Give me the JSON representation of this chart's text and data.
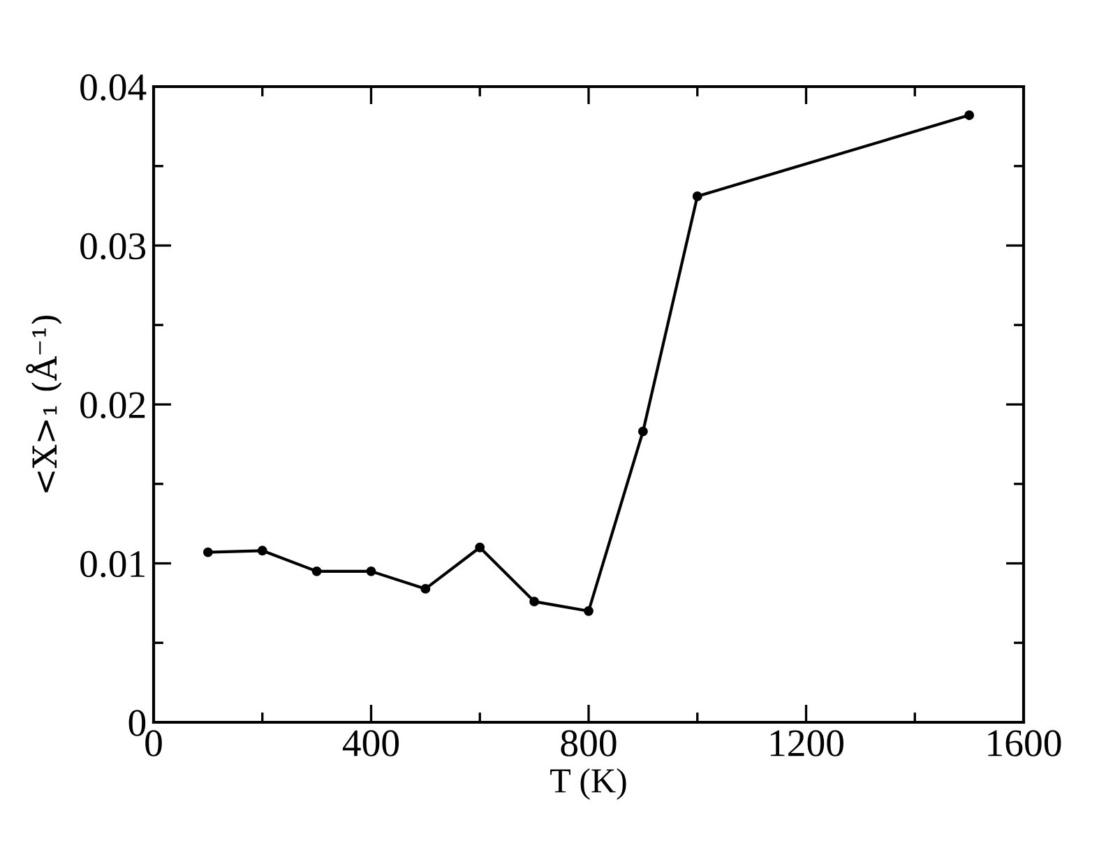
{
  "chart_data": {
    "type": "line",
    "xlabel": "T (K)",
    "ylabel": "<X>₁ (Å⁻¹)",
    "x": [
      100,
      200,
      300,
      400,
      500,
      600,
      700,
      800,
      900,
      1000,
      1500
    ],
    "series": [
      {
        "color": "#000000",
        "values": [
          0.0107,
          0.0108,
          0.0095,
          0.0095,
          0.0084,
          0.011,
          0.0076,
          0.007,
          0.0183,
          0.0331,
          0.0382
        ]
      }
    ],
    "xlim": [
      0,
      1600
    ],
    "xticks": [
      0,
      400,
      800,
      1200,
      1600
    ],
    "ylim": [
      0,
      0.04
    ],
    "yticks": [
      0,
      0.01,
      0.02,
      0.03,
      0.04
    ],
    "marker": "circle",
    "line_style": "solid",
    "grid": false
  }
}
